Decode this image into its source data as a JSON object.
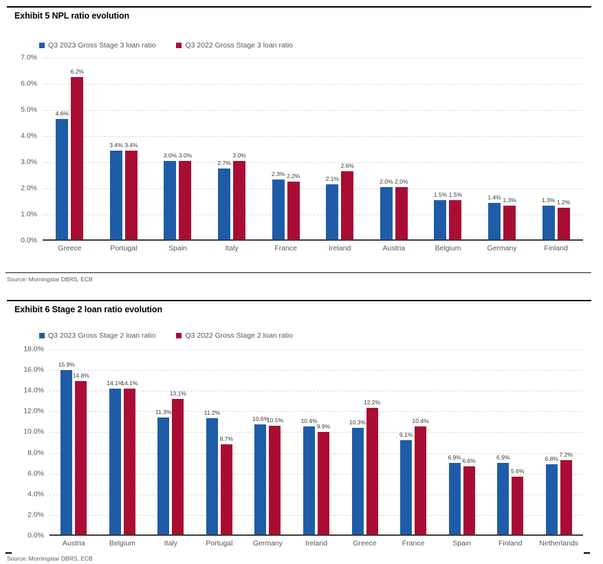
{
  "colors": {
    "series_2023_blue": "#1F5CA8",
    "series_2022_red": "#A90D33",
    "grid": "#DCDCDC",
    "axis_text": "#55565B",
    "value_label_text": "#3B3B3E",
    "rule": "#000000"
  },
  "chart_data": [
    {
      "type": "bar",
      "title": "Exhibit 5 NPL ratio evolution",
      "categories": [
        "Greece",
        "Portugal",
        "Spain",
        "Italy",
        "France",
        "Ireland",
        "Austria",
        "Belgium",
        "Germany",
        "Finland"
      ],
      "series": [
        {
          "name": "Q3 2023 Gross Stage 3 loan ratio",
          "color": "#1F5CA8",
          "values": [
            4.6,
            3.4,
            3.0,
            2.7,
            2.3,
            2.1,
            2.0,
            1.5,
            1.4,
            1.3
          ]
        },
        {
          "name": "Q3 2022 Gross Stage 3 loan ratio",
          "color": "#A90D33",
          "values": [
            6.2,
            3.4,
            3.0,
            3.0,
            2.2,
            2.6,
            2.0,
            1.5,
            1.3,
            1.2
          ]
        }
      ],
      "xlabel": "",
      "ylabel": "",
      "ylim": [
        0,
        7
      ],
      "ytick_step": 1,
      "tick_format": "percent_one_decimal",
      "value_labels": "percent_one_decimal",
      "grid": "horizontal-dashed",
      "legend_position": "top-left",
      "source": "Source: Morningstar DBRS, ECB"
    },
    {
      "type": "bar",
      "title": "Exhibit 6 Stage 2 loan ratio evolution",
      "categories": [
        "Austria",
        "Belgium",
        "Italy",
        "Portugal",
        "Germany",
        "Ireland",
        "Greece",
        "France",
        "Spain",
        "Finland",
        "Netherlands"
      ],
      "series": [
        {
          "name": "Q3 2023 Gross Stage 2 loan ratio",
          "color": "#1F5CA8",
          "values": [
            15.9,
            14.1,
            11.3,
            11.2,
            10.6,
            10.4,
            10.3,
            9.1,
            6.9,
            6.9,
            6.8
          ]
        },
        {
          "name": "Q3 2022 Gross Stage 2 loan ratio",
          "color": "#A90D33",
          "values": [
            14.8,
            14.1,
            13.1,
            8.7,
            10.5,
            9.9,
            12.2,
            10.4,
            6.6,
            5.6,
            7.2
          ]
        }
      ],
      "xlabel": "",
      "ylabel": "",
      "ylim": [
        0,
        18
      ],
      "ytick_step": 2,
      "tick_format": "percent_one_decimal",
      "value_labels": "percent_one_decimal",
      "grid": "horizontal-dashed",
      "legend_position": "top-left",
      "source": "Source: Morningstar DBRS, ECB"
    }
  ]
}
